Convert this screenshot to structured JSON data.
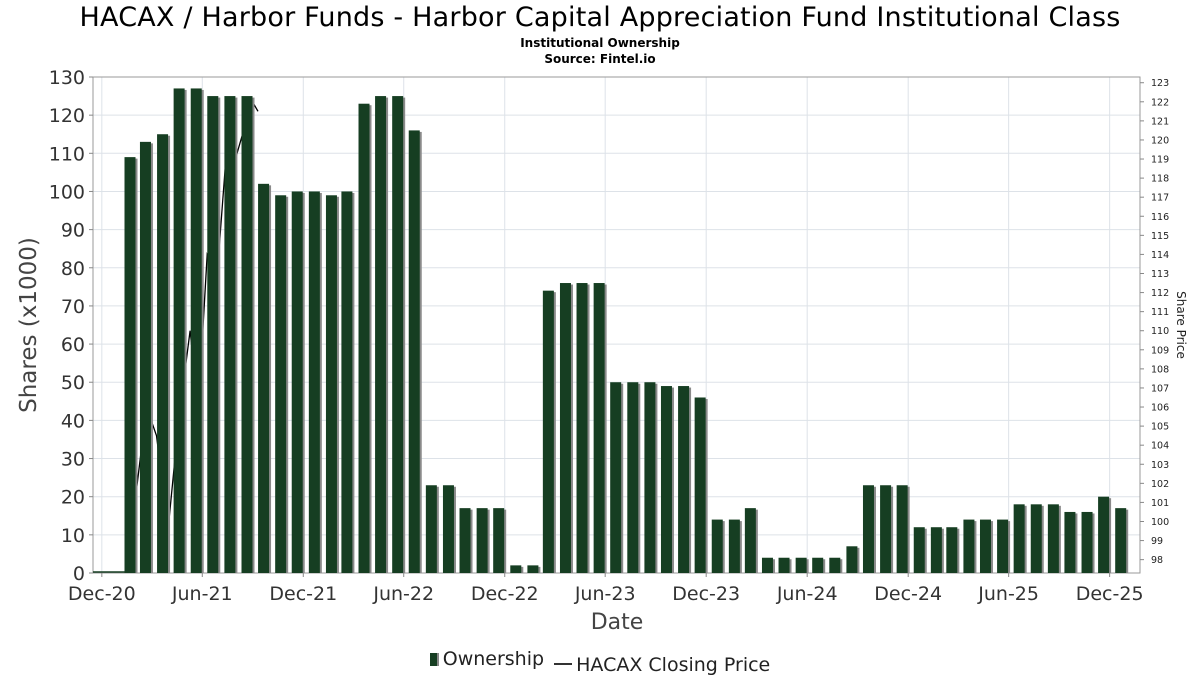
{
  "title": "HACAX / Harbor Funds - Harbor Capital Appreciation Fund Institutional Class",
  "subtitle": "Institutional Ownership",
  "source": "Source: Fintel.io",
  "legend": {
    "ownership": "Ownership",
    "price": "HACAX Closing Price"
  },
  "chart_data": {
    "type": "bar",
    "xlabel": "Date",
    "ylabel": "Shares (x1000)",
    "y2label": "Share Price",
    "ylim": [
      0,
      130
    ],
    "y2lim": [
      97.3,
      123.3
    ],
    "yticks": [
      0,
      10,
      20,
      30,
      40,
      50,
      60,
      70,
      80,
      90,
      100,
      110,
      120,
      130
    ],
    "y2ticks": [
      98,
      99,
      100,
      101,
      102,
      103,
      104,
      105,
      106,
      107,
      108,
      109,
      110,
      111,
      112,
      113,
      114,
      115,
      116,
      117,
      118,
      119,
      120,
      121,
      122,
      123
    ],
    "xlim": [
      "2020-11-15",
      "2026-01-25"
    ],
    "xticks": [
      {
        "label": "Dec-20",
        "date": "2020-12-01"
      },
      {
        "label": "Jun-21",
        "date": "2021-06-01"
      },
      {
        "label": "Dec-21",
        "date": "2021-12-01"
      },
      {
        "label": "Jun-22",
        "date": "2022-06-01"
      },
      {
        "label": "Dec-22",
        "date": "2022-12-01"
      },
      {
        "label": "Jun-23",
        "date": "2023-06-01"
      },
      {
        "label": "Dec-23",
        "date": "2023-12-01"
      },
      {
        "label": "Jun-24",
        "date": "2024-06-01"
      },
      {
        "label": "Dec-24",
        "date": "2024-12-01"
      },
      {
        "label": "Jun-25",
        "date": "2025-06-01"
      },
      {
        "label": "Dec-25",
        "date": "2025-12-01"
      }
    ],
    "grid": true,
    "series": [
      {
        "name": "Ownership",
        "color": "#163e22",
        "x": [
          "2021-01-31",
          "2021-02-28",
          "2021-03-31",
          "2021-04-30",
          "2021-05-31",
          "2021-06-30",
          "2021-07-31",
          "2021-08-31",
          "2021-09-30",
          "2021-10-31",
          "2021-11-30",
          "2021-12-31",
          "2022-01-31",
          "2022-02-28",
          "2022-03-31",
          "2022-04-30",
          "2022-05-31",
          "2022-06-30",
          "2022-07-31",
          "2022-08-31",
          "2022-09-30",
          "2022-10-31",
          "2022-11-30",
          "2022-12-31",
          "2023-01-31",
          "2023-02-28",
          "2023-03-31",
          "2023-04-30",
          "2023-05-31",
          "2023-06-30",
          "2023-07-31",
          "2023-08-31",
          "2023-09-30",
          "2023-10-31",
          "2023-11-30",
          "2023-12-31",
          "2024-01-31",
          "2024-02-29",
          "2024-03-31",
          "2024-04-30",
          "2024-05-31",
          "2024-06-30",
          "2024-07-31",
          "2024-08-31",
          "2024-09-30",
          "2024-10-31",
          "2024-11-30",
          "2024-12-31",
          "2025-01-31",
          "2025-02-28",
          "2025-03-31",
          "2025-04-30",
          "2025-05-31",
          "2025-06-30",
          "2025-07-31",
          "2025-08-31",
          "2025-09-30",
          "2025-10-31",
          "2025-11-30",
          "2025-12-31"
        ],
        "values": [
          109,
          113,
          115,
          127,
          127,
          125,
          125,
          125,
          102,
          99,
          100,
          100,
          99,
          100,
          123,
          125,
          125,
          116,
          23,
          23,
          17,
          17,
          17,
          2,
          2,
          74,
          76,
          76,
          76,
          50,
          50,
          50,
          49,
          49,
          46,
          14,
          14,
          17,
          4,
          4,
          4,
          4,
          4,
          7,
          23,
          23,
          23,
          12,
          12,
          12,
          14,
          14,
          14,
          18,
          18,
          18,
          16,
          16,
          20,
          17
        ]
      },
      {
        "name": "HACAX Closing Price",
        "color": "#000000",
        "axis": "right",
        "x": [
          "2021-02-01",
          "2021-02-20",
          "2021-03-10",
          "2021-03-31",
          "2021-04-20",
          "2021-05-10",
          "2021-05-25",
          "2021-06-10",
          "2021-06-28",
          "2021-07-15",
          "2021-07-31",
          "2021-08-20",
          "2021-08-31",
          "2021-09-10"
        ],
        "values": [
          101.5,
          106.0,
          104.5,
          99.6,
          105.5,
          110.0,
          106.0,
          114.0,
          113.0,
          119.5,
          119.0,
          121.0,
          122.0,
          121.5
        ]
      }
    ]
  }
}
